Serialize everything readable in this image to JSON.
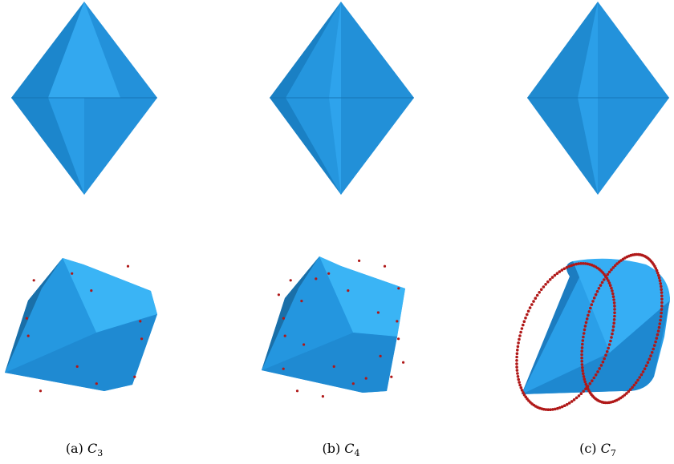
{
  "panels": [
    {
      "id": "a",
      "label": "(a)",
      "symbol": "C",
      "subscript": "3",
      "points": 12,
      "dense": false
    },
    {
      "id": "b",
      "label": "(b)",
      "symbol": "C",
      "subscript": "4",
      "points": 24,
      "dense": false
    },
    {
      "id": "c",
      "label": "(c)",
      "symbol": "C",
      "subscript": "7",
      "points": 256,
      "dense": true
    }
  ],
  "colors": {
    "solid_light": "#2ea8f0",
    "solid_mid": "#1e8fd6",
    "solid_dark": "#156fae",
    "solid_shadow": "#0f5a8f",
    "point": "#b01818"
  }
}
